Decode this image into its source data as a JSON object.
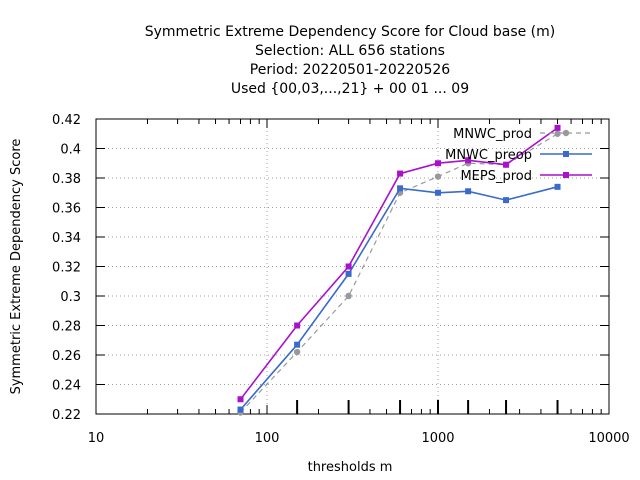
{
  "chart_data": {
    "type": "line",
    "title_lines": [
      "Symmetric Extreme Dependency Score  for Cloud base (m)",
      "Selection: ALL    656 stations",
      "Period: 20220501-20220526",
      "Used {00,03,...,21} + 00 01 ... 09"
    ],
    "xlabel": "thresholds m",
    "ylabel": "Symmetric Extreme Dependency Score",
    "xscale": "log",
    "xlim": [
      10,
      10000
    ],
    "ylim": [
      0.22,
      0.42
    ],
    "grid": true,
    "legend_position": "top-right",
    "x_ticks": [
      10,
      100,
      1000,
      10000
    ],
    "x_tick_labels": [
      "10",
      "100",
      "1000",
      "10000"
    ],
    "y_ticks": [
      0.22,
      0.24,
      0.26,
      0.28,
      0.3,
      0.32,
      0.34,
      0.36,
      0.38,
      0.4,
      0.42
    ],
    "y_tick_labels": [
      "0.22",
      "0.24",
      "0.26",
      "0.28",
      "0.3",
      "0.32",
      "0.34",
      "0.36",
      "0.38",
      "0.4",
      "0.42"
    ],
    "threshold_marks": [
      150,
      300,
      600,
      1000,
      1500,
      2500,
      5000
    ],
    "series": [
      {
        "name": "MNWC_prod",
        "color": "#999999",
        "dash": "dashed",
        "marker": "circle",
        "x": [
          70,
          150,
          300,
          600,
          1000,
          1500,
          2500,
          5000
        ],
        "y": [
          0.221,
          0.262,
          0.3,
          0.37,
          0.381,
          0.39,
          0.389,
          0.41
        ]
      },
      {
        "name": "MNWC_preop",
        "color": "#3a6acc",
        "dash": "solid",
        "marker": "square",
        "x": [
          70,
          150,
          300,
          600,
          1000,
          1500,
          2500,
          5000
        ],
        "y": [
          0.223,
          0.267,
          0.315,
          0.373,
          0.37,
          0.371,
          0.365,
          0.374
        ]
      },
      {
        "name": "MEPS_prod",
        "color": "#aa11cc",
        "dash": "solid",
        "marker": "square",
        "x": [
          70,
          150,
          300,
          600,
          1000,
          1500,
          2500,
          5000
        ],
        "y": [
          0.23,
          0.28,
          0.32,
          0.383,
          0.39,
          0.392,
          0.389,
          0.414
        ]
      }
    ]
  }
}
